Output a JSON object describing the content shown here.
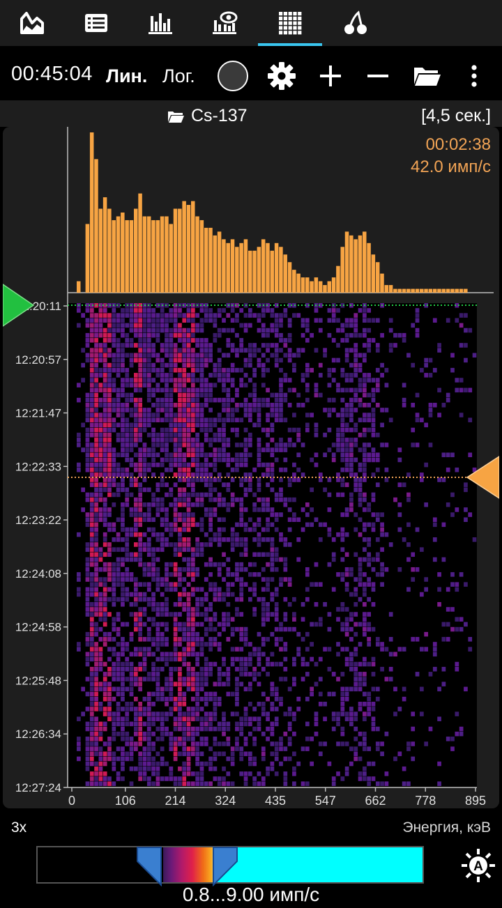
{
  "tabs": [
    {
      "name": "tab-dosimeter",
      "icon": "area-chart-icon",
      "active": false
    },
    {
      "name": "tab-log",
      "icon": "list-icon",
      "active": false
    },
    {
      "name": "tab-spectrum",
      "icon": "bar-chart-icon",
      "active": false
    },
    {
      "name": "tab-search",
      "icon": "eye-chart-icon",
      "active": false
    },
    {
      "name": "tab-spectrogram",
      "icon": "grid-icon",
      "active": true
    },
    {
      "name": "tab-isotopes",
      "icon": "cherry-icon",
      "active": false
    }
  ],
  "toolbar": {
    "timer": "00:45:04",
    "lin_label": "Лин.",
    "log_label": "Лог.",
    "colors": {
      "text": "#ffffff",
      "record": "#3a3a3a"
    }
  },
  "info": {
    "filename": "Cs-137",
    "interval": "[4,5 сек.]"
  },
  "readout": {
    "time": "00:02:38",
    "rate": "42.0 имп/с",
    "color": "#f2a455"
  },
  "bottom": {
    "zoom": "3x",
    "xlabel": "Энергия, кэВ",
    "range": "0.8...9.00 имп/с"
  },
  "chart_data": {
    "type": "heatmap",
    "spectrum": {
      "type": "bar",
      "color": "#f7a443",
      "values": [
        3,
        0,
        18,
        42,
        35,
        22,
        25,
        22,
        19,
        20,
        21,
        19,
        19,
        22,
        26,
        20,
        20,
        19,
        19,
        20,
        20,
        18,
        22,
        22,
        24,
        23,
        24,
        20,
        19,
        17,
        17,
        15,
        16,
        14,
        13,
        14,
        12,
        13,
        14,
        11,
        11,
        12,
        14,
        13,
        11,
        13,
        12,
        10,
        8,
        6,
        5,
        4,
        4,
        3,
        4,
        3,
        2,
        3,
        4,
        7,
        12,
        16,
        15,
        14,
        15,
        16,
        13,
        10,
        8,
        5,
        2,
        2,
        1,
        1,
        1,
        1,
        1,
        1,
        1,
        1,
        1,
        1,
        1,
        1,
        1,
        1,
        1,
        1,
        1,
        0,
        0
      ]
    },
    "heatmap": {
      "y_ticks": [
        "12:20:11",
        "12:20:57",
        "12:21:47",
        "12:22:33",
        "12:23:22",
        "12:24:08",
        "12:24:58",
        "12:25:48",
        "12:26:34",
        "12:27:24"
      ],
      "x_ticks": [
        "0",
        "106",
        "214",
        "324",
        "435",
        "547",
        "662",
        "778",
        "895"
      ],
      "xlabel": "Энергия, кэВ",
      "palette": [
        "#000000",
        "#3a1a6a",
        "#4d1f86",
        "#5b1a8e",
        "#7a1a8a",
        "#a01a70",
        "#d01a55"
      ],
      "marker_start": "12:20:11",
      "marker_cursor_time": "00:02:38",
      "marker_colors": {
        "start": "#22cc44",
        "cursor": "#f2a455"
      }
    }
  }
}
